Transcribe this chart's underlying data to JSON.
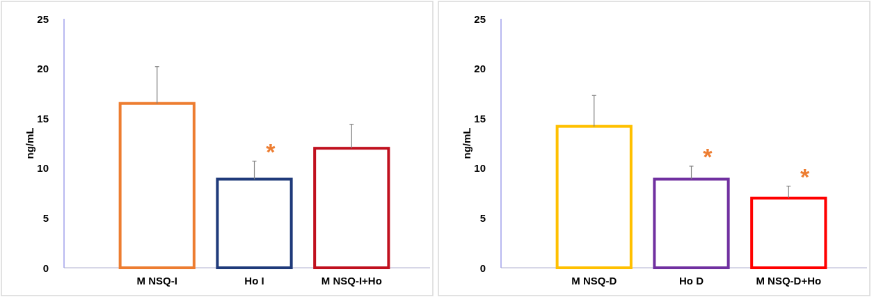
{
  "chart_data": [
    {
      "type": "bar",
      "ylabel": "ng/mL",
      "categories": [
        "M NSQ-I",
        "Ho I",
        "M NSQ-I+Ho"
      ],
      "values": [
        16.5,
        8.9,
        12.0
      ],
      "colors": [
        "#ed7d31",
        "#1f3a7a",
        "#c0101e"
      ],
      "errors": [
        [
          16.5,
          20.2
        ],
        [
          8.9,
          10.7
        ],
        [
          12.0,
          14.4
        ]
      ],
      "ylim": [
        0,
        25
      ],
      "yticks": [
        0,
        5,
        10,
        15,
        20,
        25
      ],
      "grid": false,
      "annotations": [
        {
          "text": "*",
          "x": "Ho I",
          "y": 8.9
        }
      ]
    },
    {
      "type": "bar",
      "ylabel": "ng/mL",
      "categories": [
        "M NSQ-D",
        "Ho D",
        "M NSQ-D+Ho"
      ],
      "values": [
        14.2,
        8.9,
        7.0
      ],
      "colors": [
        "#ffc000",
        "#7030a0",
        "#ff0000"
      ],
      "errors": [
        [
          14.2,
          17.3
        ],
        [
          8.9,
          10.2
        ],
        [
          7.0,
          8.2
        ]
      ],
      "ylim": [
        0,
        25
      ],
      "yticks": [
        0,
        5,
        10,
        15,
        20,
        25
      ],
      "grid": false,
      "annotations": [
        {
          "text": "*",
          "x": "Ho D",
          "y": 8.9
        },
        {
          "text": "*",
          "x": "M NSQ-D+Ho",
          "y": 7.0
        }
      ]
    }
  ]
}
